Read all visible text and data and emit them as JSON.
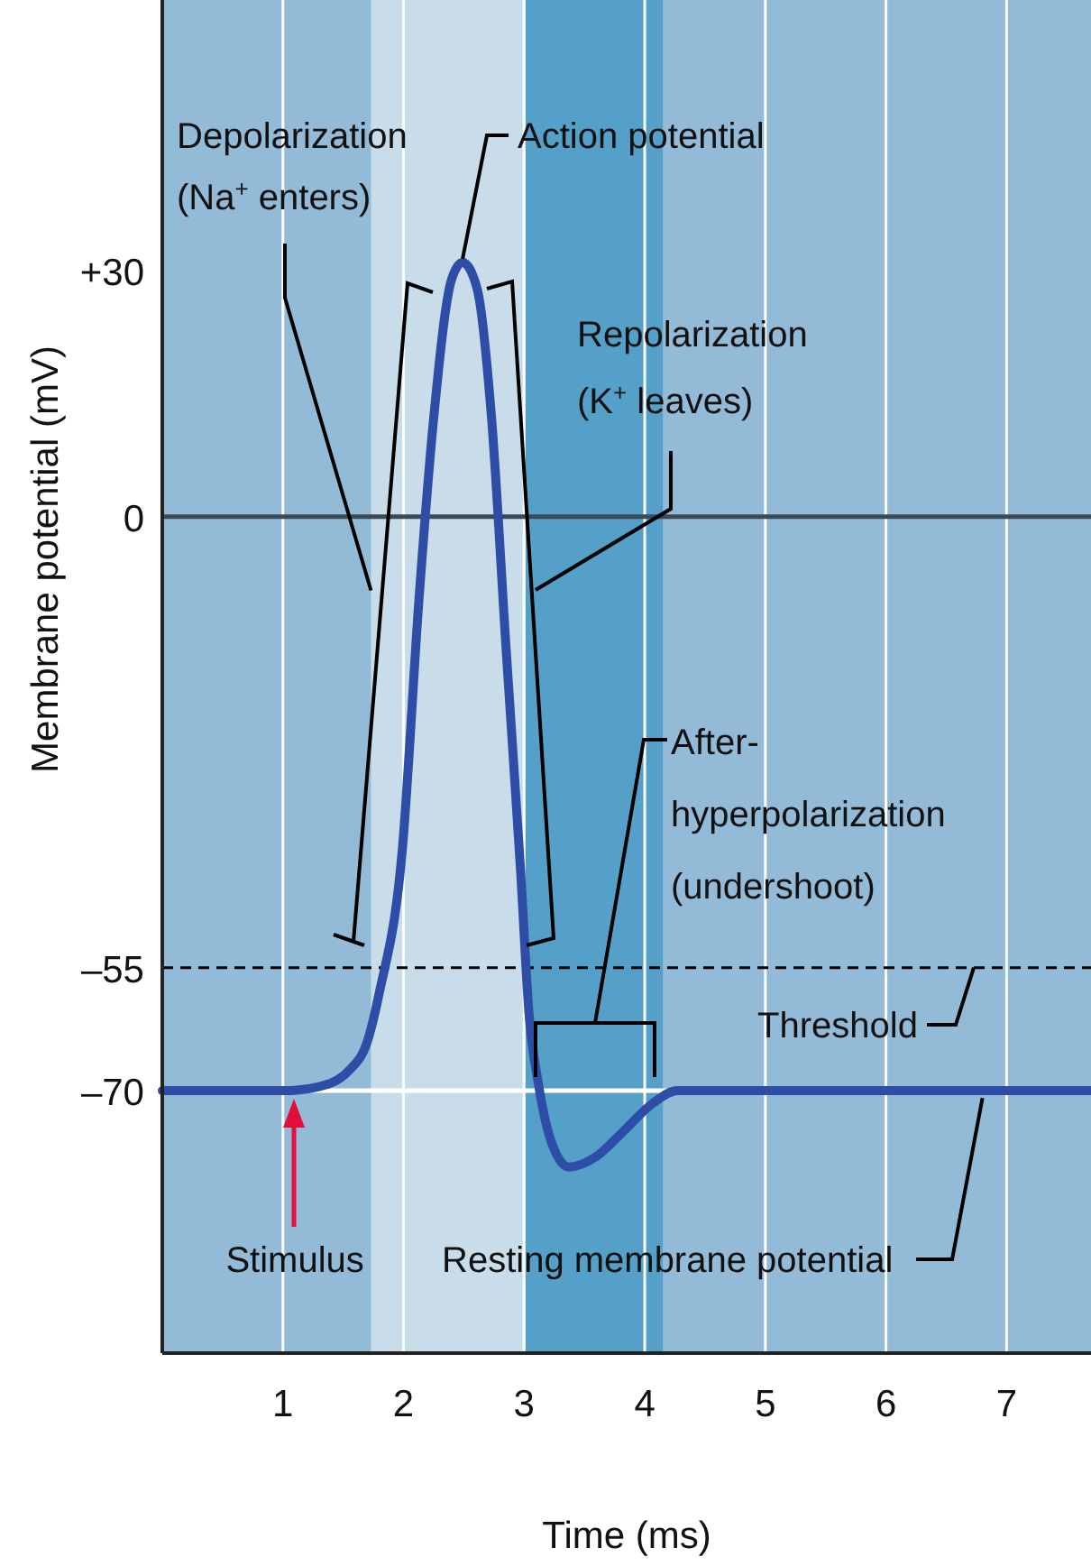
{
  "chart_data": {
    "type": "line",
    "xlabel": "Time (ms)",
    "ylabel": "Membrane potential (mV)",
    "xlim": [
      0,
      7.7
    ],
    "xticks": [
      1,
      2,
      3,
      4,
      5,
      6,
      7
    ],
    "ylim": [
      -102,
      63
    ],
    "yticks": [
      {
        "value": 30,
        "label": "+30"
      },
      0,
      {
        "value": -55,
        "label": "–55"
      },
      {
        "value": -70,
        "label": "–70"
      }
    ],
    "grid": "x",
    "marker": "none",
    "line_style": "solid",
    "series": [
      {
        "color": "#2e4da6",
        "x": [
          0,
          1.0,
          1.3,
          1.55,
          1.7,
          1.8,
          1.99,
          2.13,
          2.25,
          2.4,
          2.49,
          2.61,
          2.73,
          2.85,
          2.97,
          3.04,
          3.12,
          3.22,
          3.37,
          3.6,
          3.82,
          4.07,
          4.27,
          7.7
        ],
        "values": [
          -70,
          -70,
          -69.5,
          -67.5,
          -64,
          -58,
          -40.6,
          -9.7,
          12,
          29,
          31,
          27.8,
          12,
          -16,
          -43,
          -60.5,
          -69.3,
          -76,
          -79.3,
          -78,
          -75,
          -71.5,
          -70,
          -70
        ]
      }
    ],
    "bands": [
      {
        "axis": "x",
        "from": 1.73,
        "to": 3.0,
        "color": "#c8dde9"
      },
      {
        "axis": "x",
        "from": 3.0,
        "to": 4.15,
        "color": "#55a0c8"
      }
    ],
    "ref_lines": [
      {
        "axis": "y",
        "value": 0,
        "color": "#3c4a55",
        "line_style": "solid"
      },
      {
        "axis": "y",
        "value": -55,
        "label": "Threshold",
        "color": "#000000",
        "line_style": "dashed"
      },
      {
        "axis": "y",
        "value": -70,
        "color": "#ffffff",
        "line_style": "solid"
      }
    ],
    "annotations": [
      {
        "text": "Depolarization\n(Na$^{+}$ enters)",
        "x": 1.73,
        "y": -9
      },
      {
        "text": "Action potential",
        "x": 2.49,
        "y": 31
      },
      "Repolarization\n(K$^{+}$ leaves)",
      "After-\nhyperpolarization\n(undershoot)",
      "Stimulus",
      {
        "text": "Resting membrane potential",
        "x": 6.8,
        "y": -70
      }
    ]
  }
}
